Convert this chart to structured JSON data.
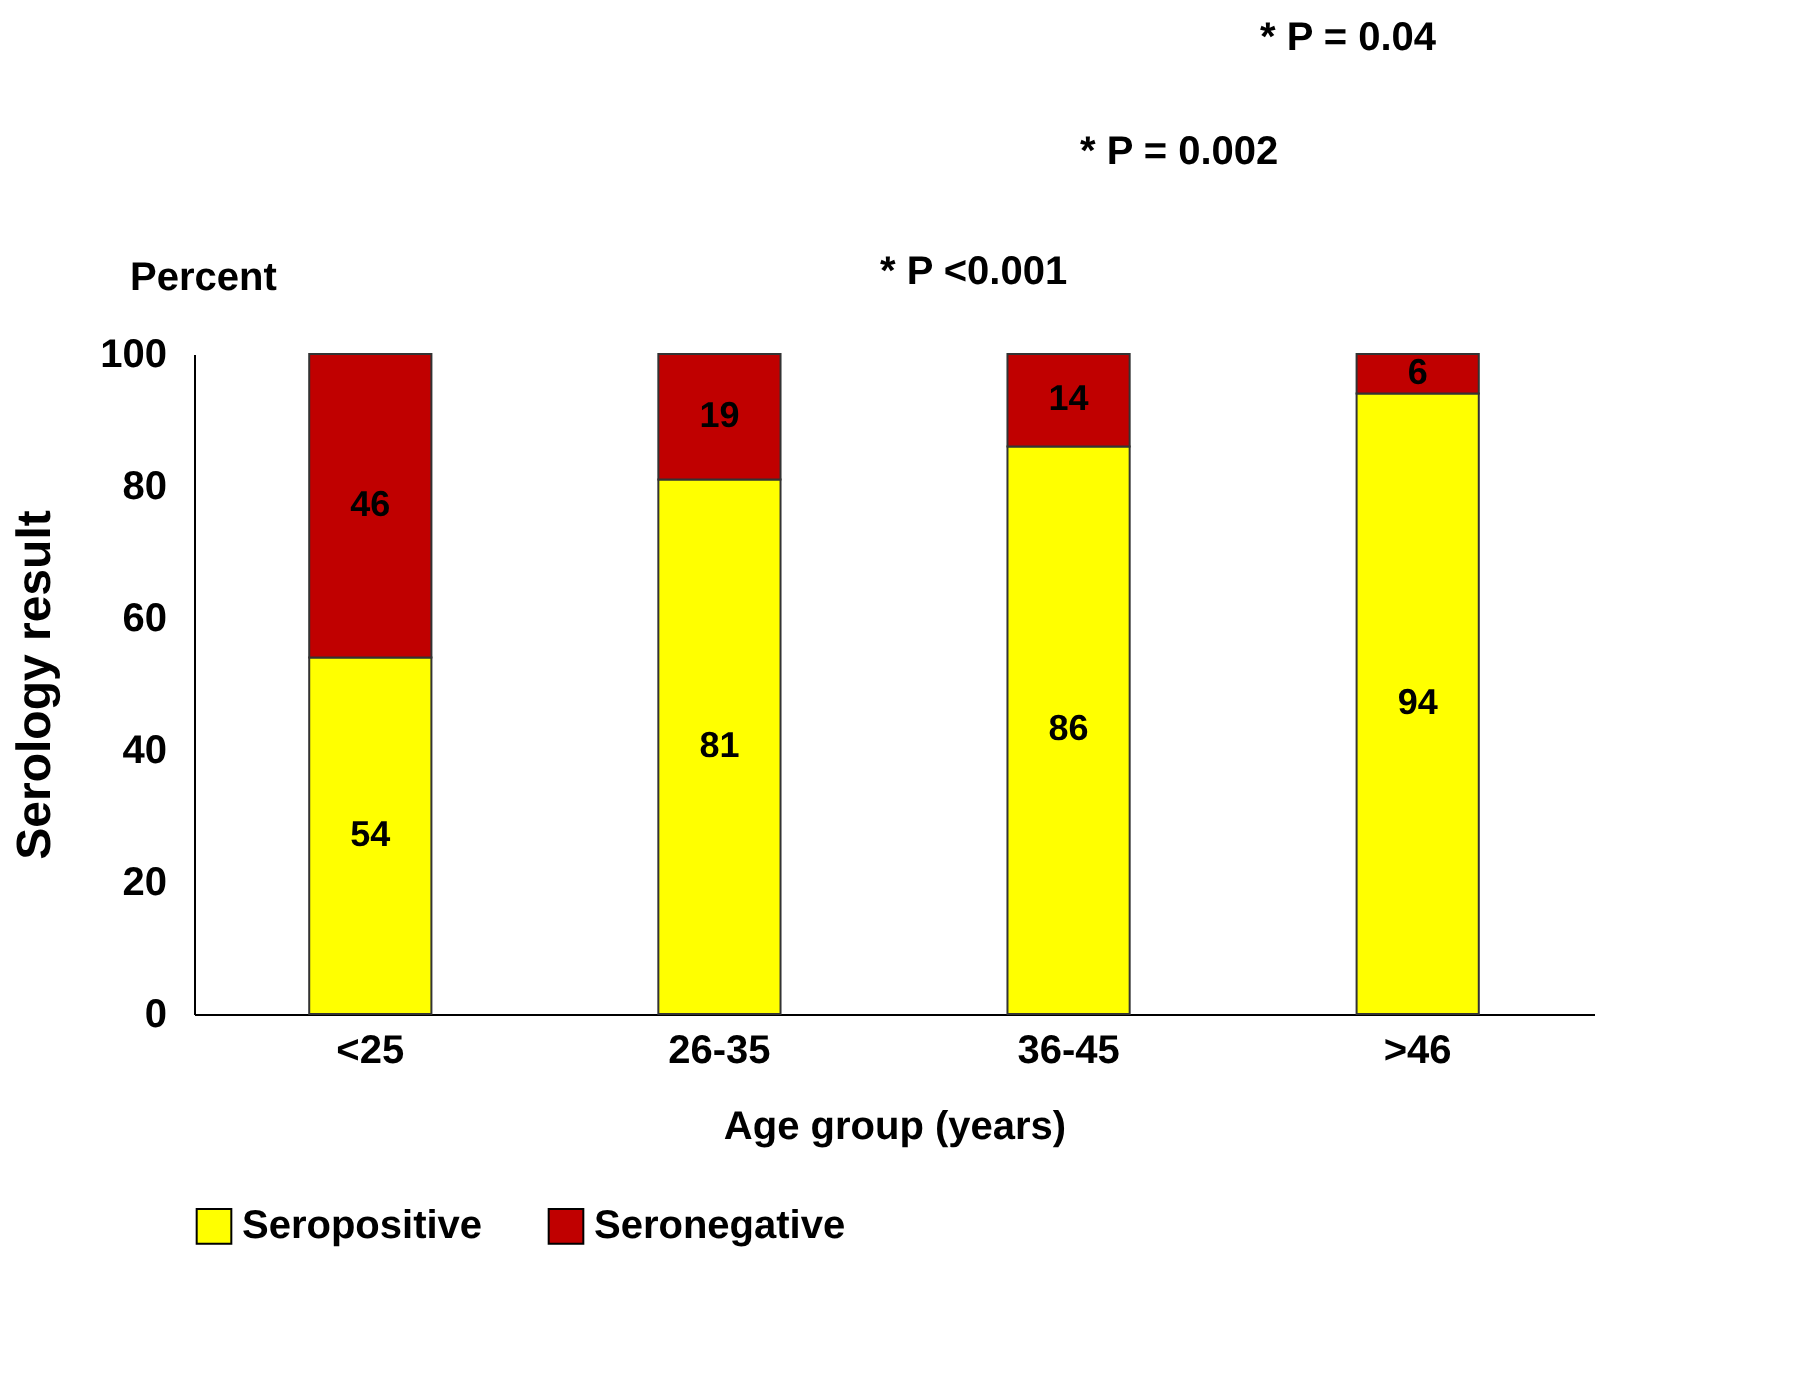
{
  "chart_data": {
    "type": "bar",
    "stacked": true,
    "xlabel": "Age group (years)",
    "ylabel": "Serology result",
    "categories": [
      "<25",
      "26-35",
      "36-45",
      ">46"
    ],
    "series": [
      {
        "name": "Seropositive",
        "color": "#ffff00",
        "values": [
          54,
          81,
          86,
          94
        ]
      },
      {
        "name": "Seronegative",
        "color": "#c00000",
        "values": [
          46,
          19,
          14,
          6
        ]
      }
    ],
    "ylim": [
      0,
      100
    ],
    "yticks": [
      0,
      20,
      40,
      60,
      80,
      100
    ],
    "grid": false,
    "legend": "bottom",
    "data_labels": true,
    "annotations": [
      "Percent",
      "* P <0.001",
      "* P = 0.002",
      "* P = 0.04"
    ]
  }
}
